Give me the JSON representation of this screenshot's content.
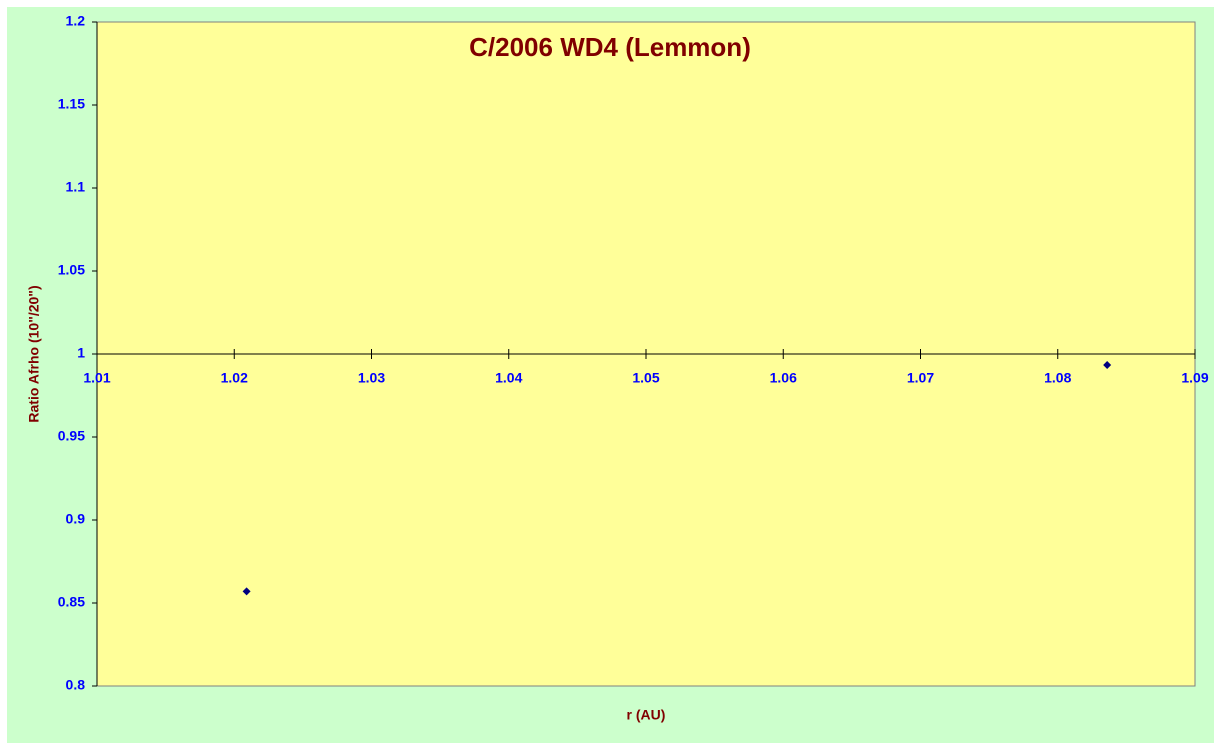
{
  "chart_data": {
    "type": "scatter",
    "title": "C/2006 WD4 (Lemmon)",
    "x_label": "r (AU)",
    "y_label": "Ratio Afrho (10\"/20\")",
    "series": [
      {
        "color": "#000080",
        "x": [
          1.0209,
          1.0836
        ],
        "values": [
          0.857,
          0.9934
        ]
      }
    ],
    "xlim": [
      1.01,
      1.09
    ],
    "xticks": [
      1.01,
      1.02,
      1.03,
      1.04,
      1.05,
      1.06,
      1.07,
      1.08,
      1.09
    ],
    "ylim": [
      0.8,
      1.2
    ],
    "yticks": [
      0.8,
      0.85,
      0.9,
      0.95,
      1,
      1.05,
      1.1,
      1.15,
      1.2
    ],
    "x_axis_crosses_at": 1,
    "grid": false
  }
}
